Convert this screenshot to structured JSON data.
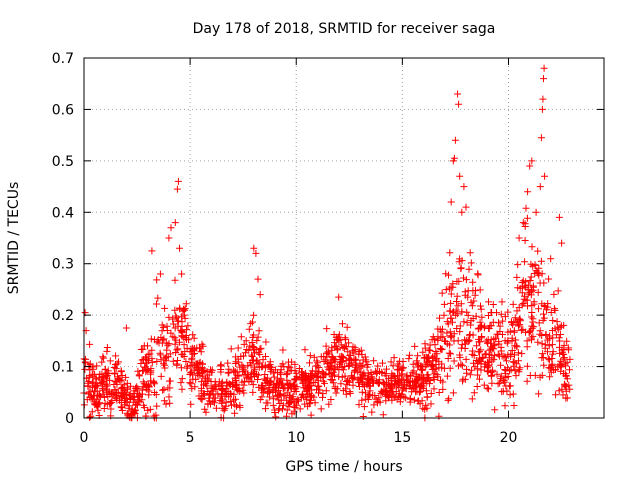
{
  "chart_data": {
    "type": "scatter",
    "title": "Day 178 of 2018, SRMTID for receiver saga",
    "xlabel": "GPS time / hours",
    "ylabel": "SRMTID / TECUs",
    "xlim": [
      0,
      24.5
    ],
    "ylim": [
      0,
      0.7
    ],
    "xticks": [
      0,
      5,
      10,
      15,
      20
    ],
    "xtick_labels": [
      "0",
      "5",
      "10",
      "15",
      "20"
    ],
    "yticks": [
      0,
      0.1,
      0.2,
      0.3,
      0.4,
      0.5,
      0.6,
      0.7
    ],
    "ytick_labels": [
      "0",
      "0.1",
      "0.2",
      "0.3",
      "0.4",
      "0.5",
      "0.6",
      "0.7"
    ],
    "grid": true,
    "marker": "+",
    "color": "#ff0000",
    "envelope": [
      {
        "t": 0.0,
        "level": 0.07,
        "spread": 0.06
      },
      {
        "t": 0.5,
        "level": 0.06,
        "spread": 0.05
      },
      {
        "t": 1.5,
        "level": 0.07,
        "spread": 0.05
      },
      {
        "t": 2.2,
        "level": 0.02,
        "spread": 0.03
      },
      {
        "t": 3.0,
        "level": 0.08,
        "spread": 0.08
      },
      {
        "t": 3.5,
        "level": 0.12,
        "spread": 0.1
      },
      {
        "t": 4.2,
        "level": 0.15,
        "spread": 0.1
      },
      {
        "t": 4.6,
        "level": 0.16,
        "spread": 0.1
      },
      {
        "t": 5.2,
        "level": 0.1,
        "spread": 0.07
      },
      {
        "t": 6.0,
        "level": 0.05,
        "spread": 0.04
      },
      {
        "t": 7.0,
        "level": 0.06,
        "spread": 0.05
      },
      {
        "t": 8.0,
        "level": 0.12,
        "spread": 0.08
      },
      {
        "t": 9.0,
        "level": 0.06,
        "spread": 0.05
      },
      {
        "t": 10.0,
        "level": 0.06,
        "spread": 0.05
      },
      {
        "t": 11.0,
        "level": 0.08,
        "spread": 0.05
      },
      {
        "t": 12.0,
        "level": 0.12,
        "spread": 0.06
      },
      {
        "t": 13.0,
        "level": 0.08,
        "spread": 0.05
      },
      {
        "t": 14.0,
        "level": 0.06,
        "spread": 0.04
      },
      {
        "t": 15.0,
        "level": 0.07,
        "spread": 0.04
      },
      {
        "t": 16.0,
        "level": 0.08,
        "spread": 0.05
      },
      {
        "t": 17.0,
        "level": 0.15,
        "spread": 0.12
      },
      {
        "t": 17.6,
        "level": 0.22,
        "spread": 0.15
      },
      {
        "t": 18.2,
        "level": 0.18,
        "spread": 0.12
      },
      {
        "t": 19.0,
        "level": 0.12,
        "spread": 0.08
      },
      {
        "t": 20.0,
        "level": 0.12,
        "spread": 0.08
      },
      {
        "t": 20.8,
        "level": 0.22,
        "spread": 0.13
      },
      {
        "t": 21.5,
        "level": 0.2,
        "spread": 0.13
      },
      {
        "t": 22.2,
        "level": 0.15,
        "spread": 0.1
      },
      {
        "t": 22.8,
        "level": 0.08,
        "spread": 0.06
      }
    ],
    "peaks": [
      {
        "x": 0.05,
        "y": 0.205
      },
      {
        "x": 0.1,
        "y": 0.17
      },
      {
        "x": 2.0,
        "y": 0.175
      },
      {
        "x": 3.2,
        "y": 0.325
      },
      {
        "x": 3.6,
        "y": 0.28
      },
      {
        "x": 4.0,
        "y": 0.35
      },
      {
        "x": 4.1,
        "y": 0.37
      },
      {
        "x": 4.3,
        "y": 0.38
      },
      {
        "x": 4.4,
        "y": 0.445
      },
      {
        "x": 4.45,
        "y": 0.46
      },
      {
        "x": 4.5,
        "y": 0.33
      },
      {
        "x": 4.6,
        "y": 0.28
      },
      {
        "x": 8.0,
        "y": 0.33
      },
      {
        "x": 8.1,
        "y": 0.32
      },
      {
        "x": 8.2,
        "y": 0.27
      },
      {
        "x": 8.3,
        "y": 0.24
      },
      {
        "x": 12.0,
        "y": 0.235
      },
      {
        "x": 17.3,
        "y": 0.42
      },
      {
        "x": 17.4,
        "y": 0.5
      },
      {
        "x": 17.45,
        "y": 0.505
      },
      {
        "x": 17.5,
        "y": 0.54
      },
      {
        "x": 17.6,
        "y": 0.63
      },
      {
        "x": 17.65,
        "y": 0.61
      },
      {
        "x": 17.7,
        "y": 0.47
      },
      {
        "x": 17.8,
        "y": 0.4
      },
      {
        "x": 18.0,
        "y": 0.41
      },
      {
        "x": 17.9,
        "y": 0.45
      },
      {
        "x": 20.5,
        "y": 0.35
      },
      {
        "x": 20.7,
        "y": 0.38
      },
      {
        "x": 20.9,
        "y": 0.44
      },
      {
        "x": 21.0,
        "y": 0.49
      },
      {
        "x": 21.1,
        "y": 0.5
      },
      {
        "x": 21.3,
        "y": 0.4
      },
      {
        "x": 21.5,
        "y": 0.45
      },
      {
        "x": 21.55,
        "y": 0.545
      },
      {
        "x": 21.6,
        "y": 0.6
      },
      {
        "x": 21.62,
        "y": 0.62
      },
      {
        "x": 21.65,
        "y": 0.66
      },
      {
        "x": 21.68,
        "y": 0.68
      },
      {
        "x": 21.7,
        "y": 0.47
      },
      {
        "x": 22.4,
        "y": 0.39
      },
      {
        "x": 22.5,
        "y": 0.34
      }
    ],
    "n_points": 1900,
    "t_start": 0.0,
    "t_end": 22.9
  }
}
